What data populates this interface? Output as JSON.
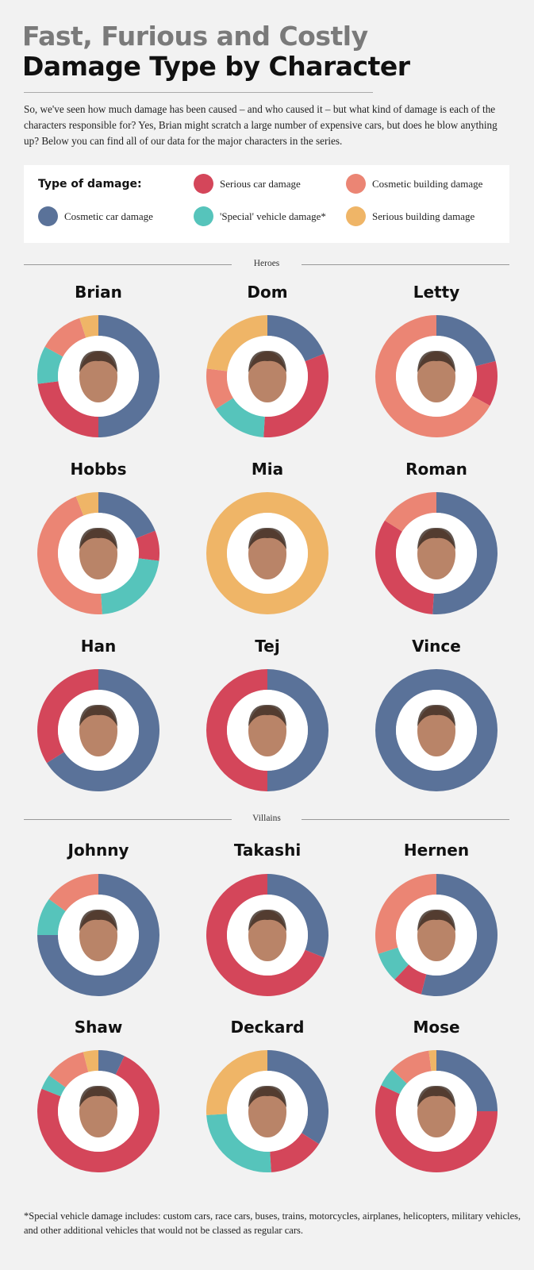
{
  "header": {
    "title_line1": "Fast, Furious and Costly",
    "title_line2": "Damage Type by Character",
    "intro": "So, we've seen how much damage has been caused – and who caused it – but what kind of damage is each of the characters responsible for? Yes, Brian might scratch a large number of expensive cars, but does he blow anything up? Below you can find all of our data for the major characters in the series."
  },
  "legend": {
    "title": "Type of damage:",
    "items": [
      {
        "label": "Cosmetic car damage",
        "color": "#5a7299"
      },
      {
        "label": "Serious car damage",
        "color": "#d4465a"
      },
      {
        "label": "'Special' vehicle damage*",
        "color": "#56c4bb"
      },
      {
        "label": "Cosmetic building damage",
        "color": "#eb8574"
      },
      {
        "label": "Serious building damage",
        "color": "#efb567"
      }
    ]
  },
  "sections": {
    "heroes": "Heroes",
    "villains": "Villains"
  },
  "footnote": "*Special vehicle damage includes: custom cars, race cars, buses, trains, motorcycles, airplanes, helicopters, military vehicles, and other additional vehicles that would not be classed as regular cars.",
  "chart_data": {
    "type": "pie",
    "variant": "donut",
    "unit": "percent share of damage (estimated)",
    "categories": [
      "Cosmetic car damage",
      "Serious car damage",
      "'Special' vehicle damage*",
      "Cosmetic building damage",
      "Serious building damage"
    ],
    "heroes": [
      {
        "name": "Brian",
        "values": [
          50,
          23,
          10,
          12,
          5
        ]
      },
      {
        "name": "Dom",
        "values": [
          19,
          32,
          15,
          11,
          23
        ]
      },
      {
        "name": "Letty",
        "values": [
          21,
          12,
          0,
          67,
          0
        ]
      },
      {
        "name": "Hobbs",
        "values": [
          19,
          8,
          22,
          45,
          6
        ]
      },
      {
        "name": "Mia",
        "values": [
          0,
          0,
          0,
          0,
          100
        ]
      },
      {
        "name": "Roman",
        "values": [
          51,
          33,
          0,
          16,
          0
        ]
      },
      {
        "name": "Han",
        "values": [
          66,
          34,
          0,
          0,
          0
        ]
      },
      {
        "name": "Tej",
        "values": [
          50,
          50,
          0,
          0,
          0
        ]
      },
      {
        "name": "Vince",
        "values": [
          100,
          0,
          0,
          0,
          0
        ]
      }
    ],
    "villains": [
      {
        "name": "Johnny",
        "values": [
          75,
          0,
          10,
          15,
          0
        ]
      },
      {
        "name": "Takashi",
        "values": [
          31,
          69,
          0,
          0,
          0
        ]
      },
      {
        "name": "Hernen",
        "values": [
          54,
          8,
          8,
          30,
          0
        ]
      },
      {
        "name": "Shaw",
        "values": [
          7,
          74,
          4,
          11,
          4
        ]
      },
      {
        "name": "Deckard",
        "values": [
          34,
          15,
          25,
          0,
          26
        ]
      },
      {
        "name": "Mose",
        "values": [
          25,
          57,
          5,
          11,
          2
        ]
      }
    ]
  }
}
